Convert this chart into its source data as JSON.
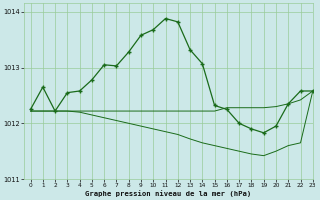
{
  "bg_color": "#cce8e8",
  "grid_color": "#99cc99",
  "line_color": "#1a6b1a",
  "title": "Graphe pression niveau de la mer (hPa)",
  "xlim": [
    -0.5,
    23
  ],
  "ylim": [
    1011,
    1014.15
  ],
  "yticks": [
    1011,
    1012,
    1013,
    1014
  ],
  "xticks": [
    0,
    1,
    2,
    3,
    4,
    5,
    6,
    7,
    8,
    9,
    10,
    11,
    12,
    13,
    14,
    15,
    16,
    17,
    18,
    19,
    20,
    21,
    22,
    23
  ],
  "curve1_x": [
    0,
    1,
    2,
    3,
    4,
    5,
    6,
    7,
    8,
    9,
    10,
    11,
    12,
    13,
    14,
    15,
    16,
    17,
    18,
    19,
    20,
    21,
    22,
    23
  ],
  "curve1_y": [
    1012.25,
    1012.65,
    1012.22,
    1012.55,
    1012.58,
    1012.78,
    1013.05,
    1013.03,
    1013.28,
    1013.58,
    1013.68,
    1013.88,
    1013.82,
    1013.32,
    1013.07,
    1012.32,
    1012.25,
    1012.0,
    1011.9,
    1011.83,
    1011.95,
    1012.35,
    1012.58,
    1012.58
  ],
  "curve2_x": [
    0,
    2,
    3,
    4,
    5,
    6,
    7,
    8,
    9,
    10,
    11,
    12,
    13,
    14,
    15,
    16,
    17,
    18,
    19,
    20,
    21,
    22,
    23
  ],
  "curve2_y": [
    1012.22,
    1012.22,
    1012.22,
    1012.22,
    1012.22,
    1012.22,
    1012.22,
    1012.22,
    1012.22,
    1012.22,
    1012.22,
    1012.22,
    1012.22,
    1012.22,
    1012.22,
    1012.28,
    1012.28,
    1012.28,
    1012.28,
    1012.3,
    1012.35,
    1012.42,
    1012.58
  ],
  "curve3_x": [
    0,
    1,
    2,
    3,
    4,
    5,
    6,
    7,
    8,
    9,
    10,
    11,
    12,
    13,
    14,
    15,
    16,
    17,
    18,
    19,
    20,
    21,
    22,
    23
  ],
  "curve3_y": [
    1012.22,
    1012.22,
    1012.22,
    1012.22,
    1012.2,
    1012.15,
    1012.1,
    1012.05,
    1012.0,
    1011.95,
    1011.9,
    1011.85,
    1011.8,
    1011.72,
    1011.65,
    1011.6,
    1011.55,
    1011.5,
    1011.45,
    1011.42,
    1011.5,
    1011.6,
    1011.65,
    1012.58
  ]
}
